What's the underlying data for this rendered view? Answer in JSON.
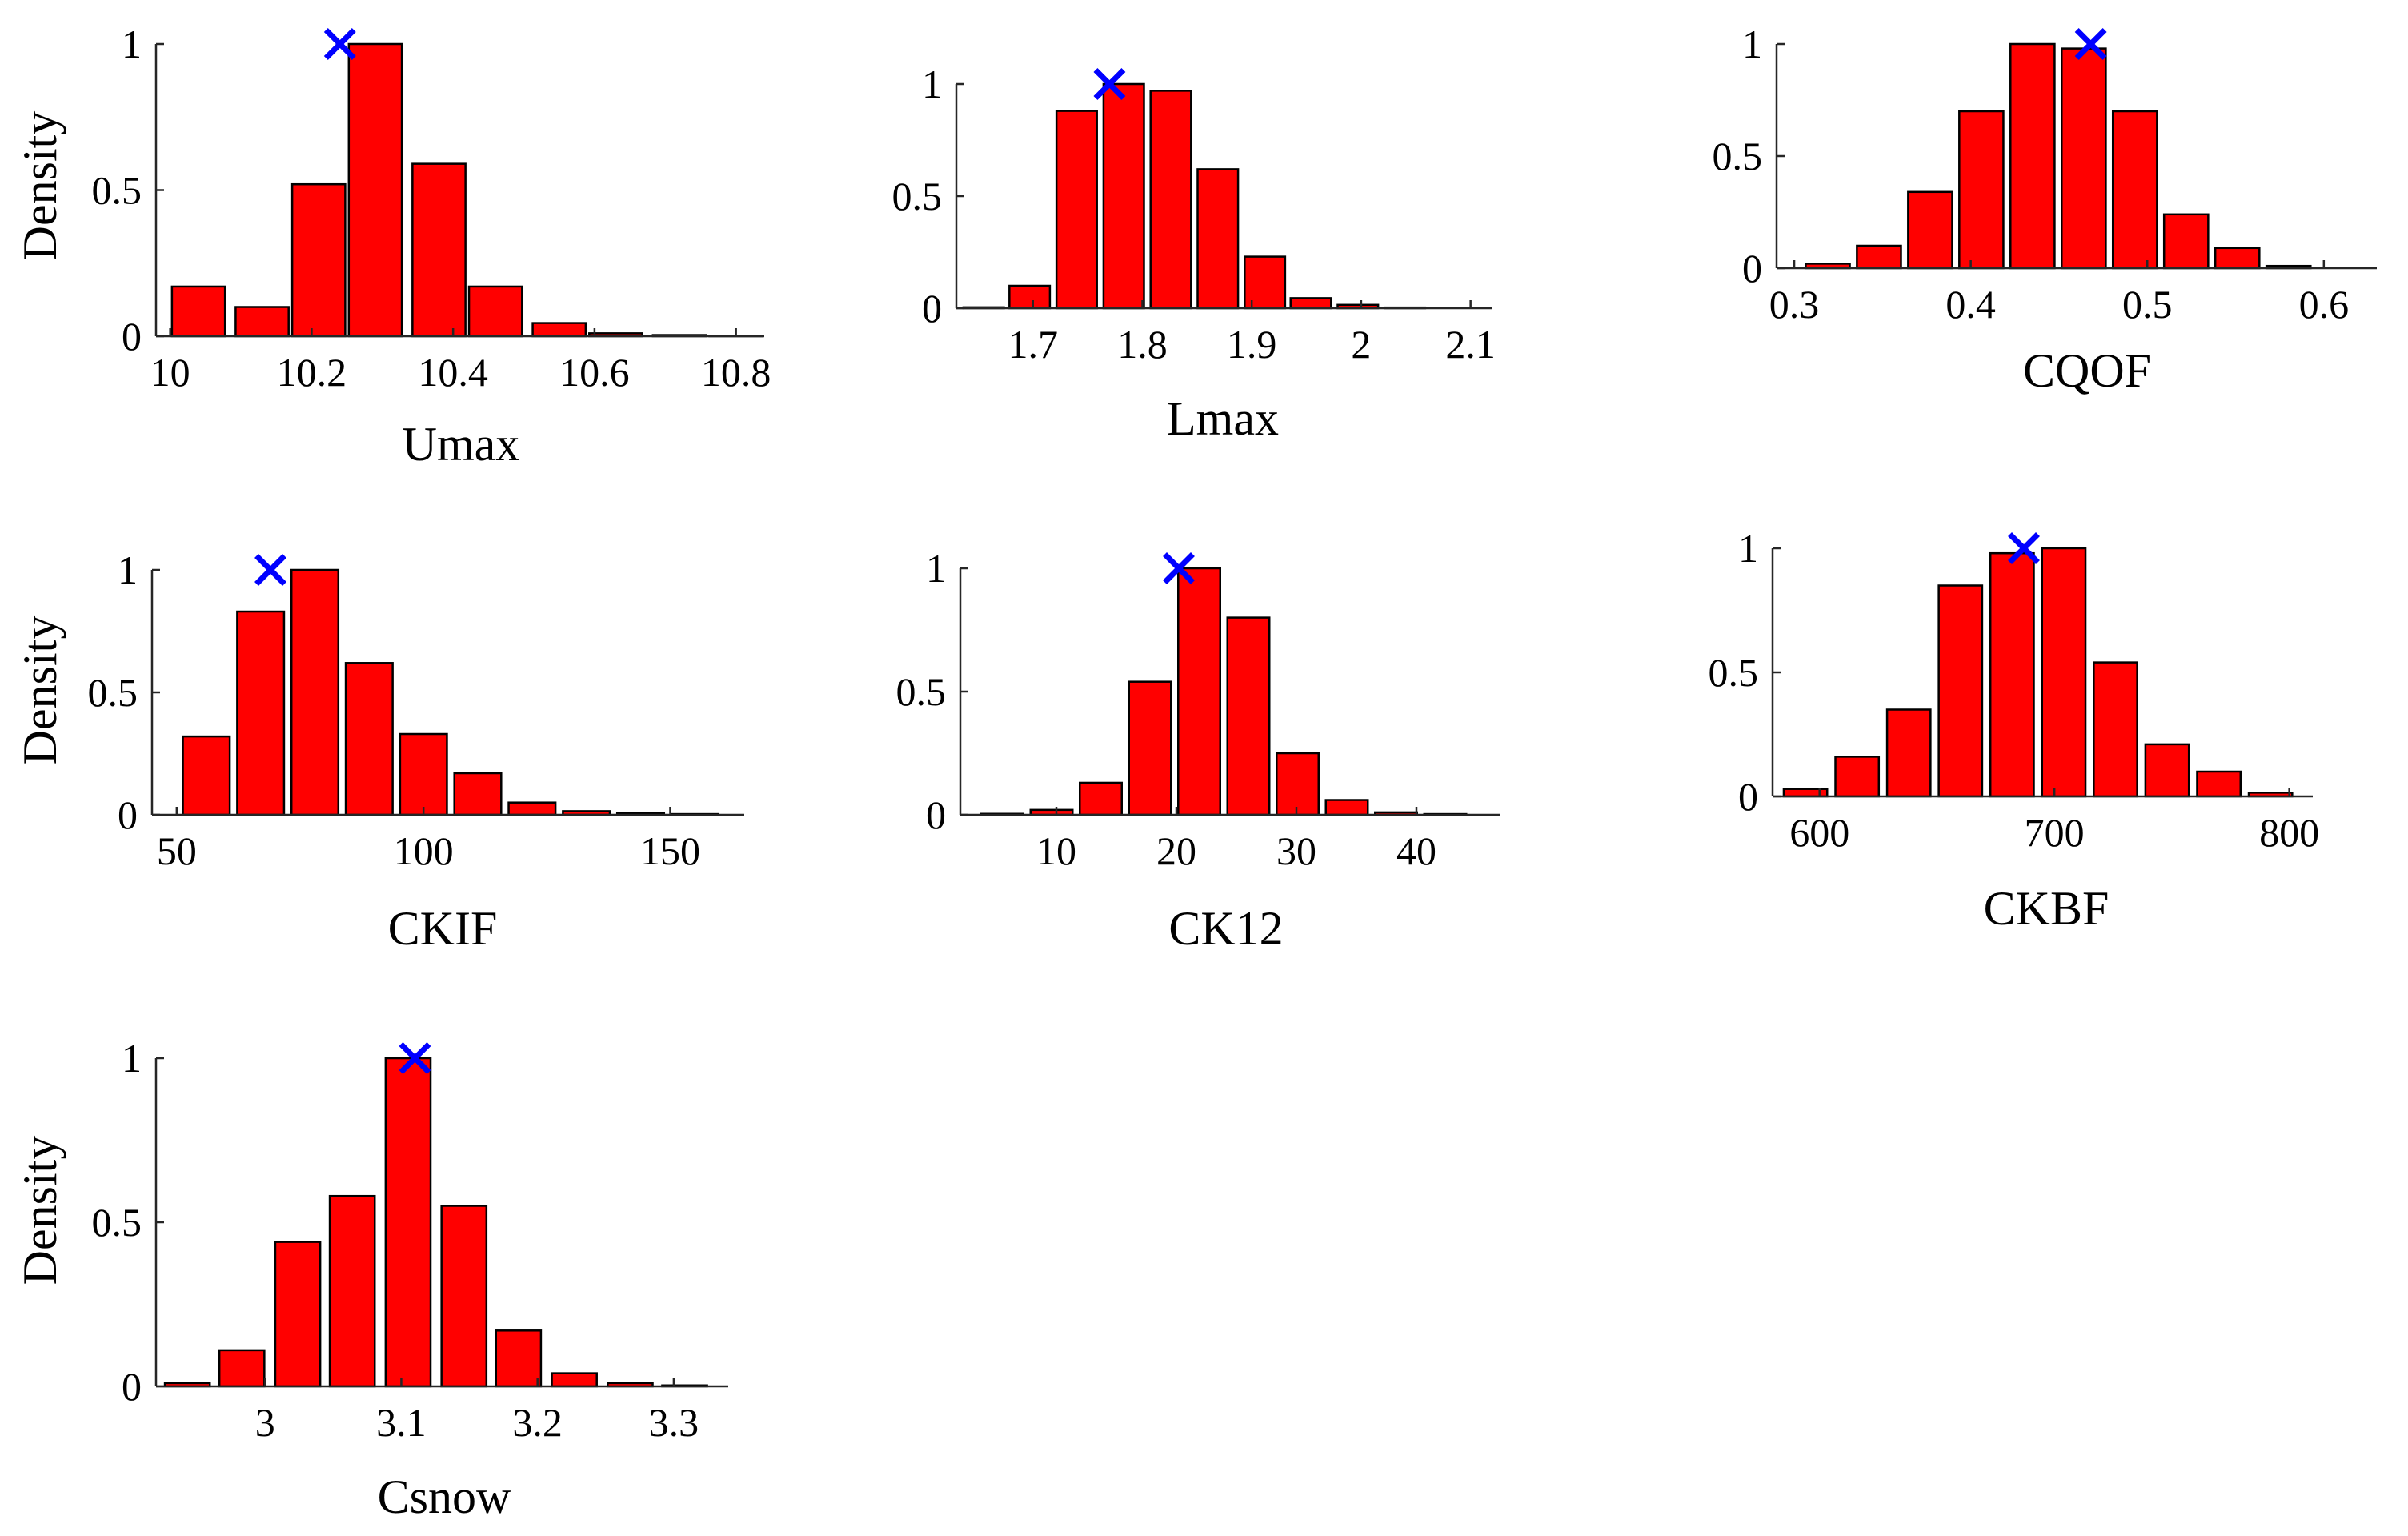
{
  "colors": {
    "bar": "#ff0000",
    "marker": "#0000ff",
    "axis": "#262626"
  },
  "chart_data": [
    {
      "type": "bar",
      "title": "",
      "xlabel": "Umax",
      "ylabel": "Density",
      "xlim": [
        9.98,
        10.84
      ],
      "ylim": [
        0,
        1
      ],
      "xticks": [
        10,
        10.2,
        10.4,
        10.6,
        10.8
      ],
      "xtick_labels": [
        "10",
        "10.2",
        "10.4",
        "10.6",
        "10.8"
      ],
      "yticks": [
        0,
        0.5,
        1
      ],
      "ytick_labels": [
        "0",
        "0.5",
        "1"
      ],
      "bin_width": 0.075,
      "x": [
        10.04,
        10.13,
        10.21,
        10.29,
        10.38,
        10.46,
        10.55,
        10.63,
        10.72,
        10.8
      ],
      "values": [
        0.17,
        0.1,
        0.52,
        1.0,
        0.59,
        0.17,
        0.045,
        0.01,
        0.004,
        0.002
      ],
      "marker": {
        "x": 10.24,
        "y": 1.0,
        "symbol": "x"
      }
    },
    {
      "type": "bar",
      "title": "",
      "xlabel": "Lmax",
      "ylabel": "",
      "xlim": [
        1.63,
        2.12
      ],
      "ylim": [
        0,
        1
      ],
      "xticks": [
        1.7,
        1.8,
        1.9,
        2,
        2.1
      ],
      "xtick_labels": [
        "1.7",
        "1.8",
        "1.9",
        "2",
        "2.1"
      ],
      "yticks": [
        0,
        0.5,
        1
      ],
      "ytick_labels": [
        "0",
        "0.5",
        "1"
      ],
      "bin_width": 0.037,
      "x": [
        1.655,
        1.697,
        1.74,
        1.783,
        1.826,
        1.869,
        1.912,
        1.954,
        1.997,
        2.04
      ],
      "values": [
        0.004,
        0.1,
        0.88,
        1.0,
        0.97,
        0.62,
        0.23,
        0.045,
        0.015,
        0.003
      ],
      "marker": {
        "x": 1.77,
        "y": 1.0,
        "symbol": "x"
      }
    },
    {
      "type": "bar",
      "title": "",
      "xlabel": "CQOF",
      "ylabel": "",
      "xlim": [
        0.29,
        0.63
      ],
      "ylim": [
        0,
        1
      ],
      "xticks": [
        0.3,
        0.4,
        0.5,
        0.6
      ],
      "xtick_labels": [
        "0.3",
        "0.4",
        "0.5",
        "0.6"
      ],
      "yticks": [
        0,
        0.5,
        1
      ],
      "ytick_labels": [
        "0",
        "0.5",
        "1"
      ],
      "bin_width": 0.025,
      "x": [
        0.319,
        0.348,
        0.377,
        0.406,
        0.435,
        0.464,
        0.493,
        0.522,
        0.551,
        0.58
      ],
      "values": [
        0.02,
        0.1,
        0.34,
        0.7,
        1.0,
        0.98,
        0.7,
        0.24,
        0.09,
        0.01
      ],
      "marker": {
        "x": 0.468,
        "y": 1.0,
        "symbol": "x"
      }
    },
    {
      "type": "bar",
      "title": "",
      "xlabel": "CKIF",
      "ylabel": "Density",
      "xlim": [
        45,
        165
      ],
      "ylim": [
        0,
        1
      ],
      "xticks": [
        50,
        100,
        150
      ],
      "xtick_labels": [
        "50",
        "100",
        "150"
      ],
      "yticks": [
        0,
        0.5,
        1
      ],
      "ytick_labels": [
        "0",
        "0.5",
        "1"
      ],
      "bin_width": 9.5,
      "x": [
        56,
        67,
        78,
        89,
        100,
        111,
        122,
        133,
        144,
        155
      ],
      "values": [
        0.32,
        0.83,
        1.0,
        0.62,
        0.33,
        0.17,
        0.05,
        0.015,
        0.008,
        0.003
      ],
      "marker": {
        "x": 69,
        "y": 1.0,
        "symbol": "x"
      }
    },
    {
      "type": "bar",
      "title": "",
      "xlabel": "CK12",
      "ylabel": "",
      "xlim": [
        2,
        47
      ],
      "ylim": [
        0,
        1
      ],
      "xticks": [
        10,
        20,
        30,
        40
      ],
      "xtick_labels": [
        "10",
        "20",
        "30",
        "40"
      ],
      "yticks": [
        0,
        0.5,
        1
      ],
      "ytick_labels": [
        "0",
        "0.5",
        "1"
      ],
      "bin_width": 3.5,
      "x": [
        5.5,
        9.6,
        13.7,
        17.8,
        21.9,
        26.0,
        30.1,
        34.2,
        38.3,
        42.4
      ],
      "values": [
        0.004,
        0.02,
        0.13,
        0.54,
        1.0,
        0.8,
        0.25,
        0.06,
        0.01,
        0.003
      ],
      "marker": {
        "x": 20.2,
        "y": 1.0,
        "symbol": "x"
      }
    },
    {
      "type": "bar",
      "title": "",
      "xlabel": "CKBF",
      "ylabel": "",
      "xlim": [
        580,
        810
      ],
      "ylim": [
        0,
        1
      ],
      "xticks": [
        600,
        700,
        800
      ],
      "xtick_labels": [
        "600",
        "700",
        "800"
      ],
      "yticks": [
        0,
        0.5,
        1
      ],
      "ytick_labels": [
        "0",
        "0.5",
        "1"
      ],
      "bin_width": 18.5,
      "x": [
        594,
        616,
        638,
        660,
        682,
        704,
        726,
        748,
        770,
        792
      ],
      "values": [
        0.03,
        0.16,
        0.35,
        0.85,
        0.98,
        1.0,
        0.54,
        0.21,
        0.1,
        0.015
      ],
      "marker": {
        "x": 687,
        "y": 1.0,
        "symbol": "x"
      }
    },
    {
      "type": "bar",
      "title": "",
      "xlabel": "Csnow",
      "ylabel": "Density",
      "xlim": [
        2.92,
        3.34
      ],
      "ylim": [
        0,
        1
      ],
      "xticks": [
        3,
        3.1,
        3.2,
        3.3
      ],
      "xtick_labels": [
        "3",
        "3.1",
        "3.2",
        "3.3"
      ],
      "yticks": [
        0,
        0.5,
        1
      ],
      "ytick_labels": [
        "0",
        "0.5",
        "1"
      ],
      "bin_width": 0.033,
      "x": [
        2.943,
        2.983,
        3.024,
        3.064,
        3.105,
        3.146,
        3.186,
        3.227,
        3.268,
        3.308
      ],
      "values": [
        0.01,
        0.11,
        0.44,
        0.58,
        1.0,
        0.55,
        0.17,
        0.04,
        0.01,
        0.003
      ],
      "marker": {
        "x": 3.11,
        "y": 1.0,
        "symbol": "x"
      }
    }
  ]
}
